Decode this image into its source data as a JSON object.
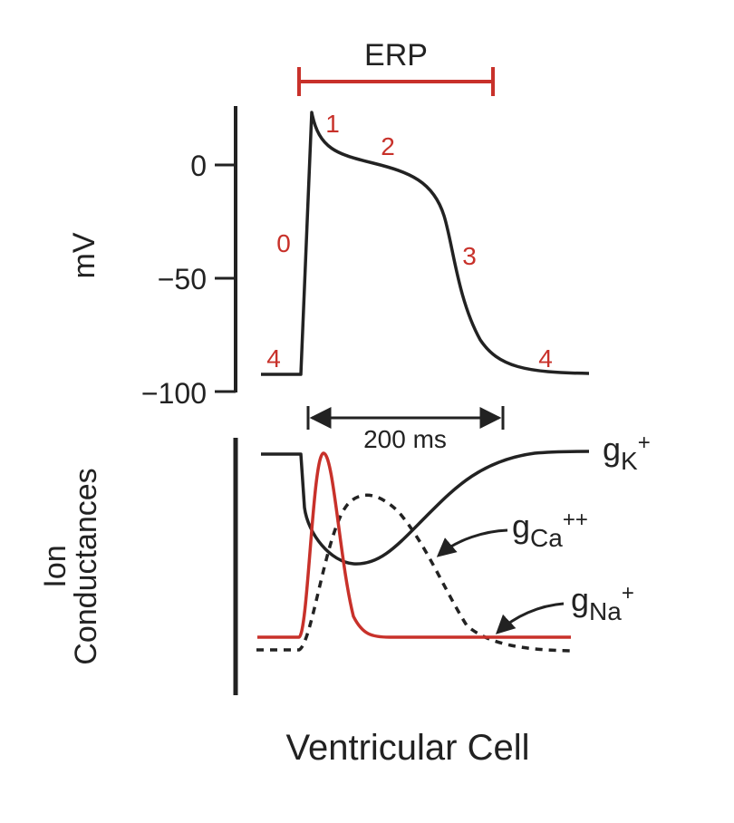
{
  "erp_label": "ERP",
  "y_axis": {
    "label": "mV",
    "ticks": [
      "0",
      "−50",
      "−100"
    ]
  },
  "phase_labels": [
    "0",
    "1",
    "2",
    "3",
    "4"
  ],
  "duration_label": "200 ms",
  "conductance_axis_label": [
    "Ion",
    "Conductances"
  ],
  "conductances": [
    {
      "base": "g",
      "sub": "K",
      "sup": "+"
    },
    {
      "base": "g",
      "sub": "Ca",
      "sup": "++"
    },
    {
      "base": "g",
      "sub": "Na",
      "sup": "+"
    }
  ],
  "caption": "Ventricular Cell",
  "colors": {
    "red": "#c8312a",
    "black": "#222222"
  }
}
